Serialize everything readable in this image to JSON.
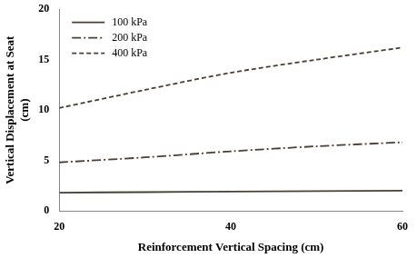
{
  "chart_data": {
    "type": "line",
    "xlabel": "Reinforcement Vertical Spacing (cm)",
    "ylabel": [
      "Vertical Displacement at Seat",
      "(cm)"
    ],
    "x": [
      20,
      30,
      40,
      50,
      60
    ],
    "series": [
      {
        "name": "100 kPa",
        "color": "#4a4030",
        "line_style": "solid",
        "values": [
          1.8,
          1.85,
          1.9,
          1.95,
          2.0
        ]
      },
      {
        "name": "200 kPa",
        "color": "#4a4030",
        "line_style": "dashdot",
        "values": [
          4.8,
          5.3,
          5.9,
          6.4,
          6.8
        ]
      },
      {
        "name": "400 kPa",
        "color": "#4a4030",
        "line_style": "dashed",
        "values": [
          10.2,
          12.0,
          13.7,
          15.0,
          16.2
        ]
      }
    ],
    "xlim": [
      20,
      60
    ],
    "xticks": [
      20,
      40,
      60
    ],
    "ylim": [
      0,
      20
    ],
    "yticks": [
      0,
      5,
      10,
      15,
      20
    ],
    "grid": false,
    "legend": "upper left"
  }
}
